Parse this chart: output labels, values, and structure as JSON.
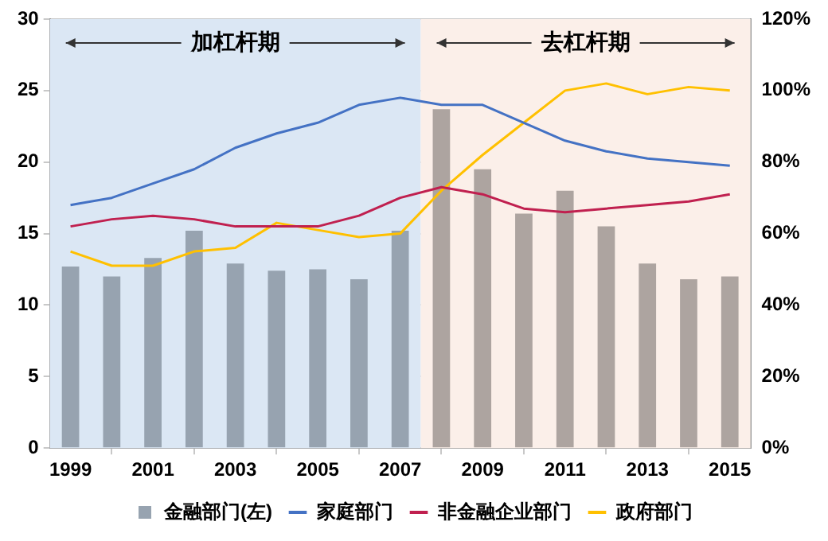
{
  "chart_data": {
    "type": "bar",
    "x": [
      1999,
      2000,
      2001,
      2002,
      2003,
      2004,
      2005,
      2006,
      2007,
      2008,
      2009,
      2010,
      2011,
      2012,
      2013,
      2014,
      2015
    ],
    "xlim": [
      1998.5,
      2015.5
    ],
    "xticks": [
      1999,
      2001,
      2003,
      2005,
      2007,
      2009,
      2011,
      2013,
      2015
    ],
    "ylim": [
      0,
      30
    ],
    "yticks": [
      0,
      5,
      10,
      15,
      20,
      25,
      30
    ],
    "y2lim": [
      0,
      120
    ],
    "y2ticks": [
      {
        "value": 0,
        "label": "0%"
      },
      {
        "value": 20,
        "label": "20%"
      },
      {
        "value": 40,
        "label": "40%"
      },
      {
        "value": 60,
        "label": "60%"
      },
      {
        "value": 80,
        "label": "80%"
      },
      {
        "value": 100,
        "label": "100%"
      },
      {
        "value": 120,
        "label": "120%"
      }
    ],
    "series": [
      {
        "name": "金融部门(左)",
        "colors": [
          "#97a3b0",
          "#97a3b0",
          "#97a3b0",
          "#97a3b0",
          "#97a3b0",
          "#97a3b0",
          "#97a3b0",
          "#97a3b0",
          "#97a3b0",
          "#ada4a0",
          "#ada4a0",
          "#ada4a0",
          "#ada4a0",
          "#ada4a0",
          "#ada4a0",
          "#ada4a0",
          "#ada4a0"
        ],
        "values": [
          12.7,
          12.0,
          13.3,
          15.2,
          12.9,
          12.4,
          12.5,
          11.8,
          15.2,
          23.7,
          19.5,
          16.4,
          18.0,
          15.5,
          12.9,
          11.8,
          12.0
        ]
      },
      {
        "name": "家庭部门",
        "type": "line",
        "axis": "y2",
        "color": "#4472c4",
        "values": [
          68,
          70,
          74,
          78,
          84,
          88,
          91,
          96,
          98,
          96,
          96,
          91,
          86,
          83,
          81,
          80,
          79
        ]
      },
      {
        "name": "非金融企业部门",
        "type": "line",
        "axis": "y2",
        "color": "#c0204f",
        "values": [
          62,
          64,
          65,
          64,
          62,
          62,
          62,
          65,
          70,
          73,
          71,
          67,
          66,
          67,
          68,
          69,
          71
        ]
      },
      {
        "name": "政府部门",
        "type": "line",
        "axis": "y2",
        "color": "#ffc000",
        "values": [
          55,
          51,
          51,
          55,
          56,
          63,
          61,
          59,
          60,
          72,
          82,
          91,
          100,
          102,
          99,
          101,
          100
        ]
      }
    ],
    "bands": [
      {
        "axis": "x",
        "from": 1998.5,
        "to": 2007.5,
        "label": "加杠杆期",
        "color": "#dbe7f4"
      },
      {
        "axis": "x",
        "from": 2007.5,
        "to": 2015.5,
        "label": "去杠杆期",
        "color": "#fbefe9"
      }
    ],
    "grid": "y",
    "legend": "bottom",
    "marker": "none",
    "line_style": "solid"
  }
}
